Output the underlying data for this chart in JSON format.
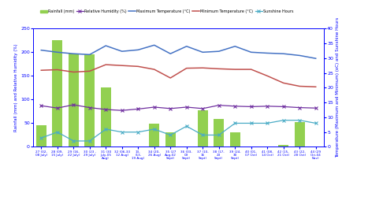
{
  "x_labels": [
    "27 (02-\n08 July)",
    "28 (09-\n15 July)",
    "29 (16-\n22 July)",
    "30 (23 -\n29 July)",
    "31 (30\nJuly-05\nAug)",
    "32 (06-33\n12 Aug)",
    "13-\n(13-\n19 Aug)",
    "34 (20-\n26 Aug)",
    "35 (27\nAug-02\nSept)",
    "36 (03-\n09\nSept)",
    "37 (10-\n16\nSept)",
    "38 (17-\n23\nSept)",
    "39 (24-\n30\nSept)",
    "40 (01-\n07 Oct)",
    "41 (08-\n14 Oct)",
    "42 (15-\n21 Oct)",
    "43 (22-\n28 Oct)",
    "44 (29\nOct-04\nNov)"
  ],
  "rainfall": [
    45,
    225,
    197,
    195,
    126,
    1,
    0,
    49,
    30,
    0,
    78,
    59,
    30,
    1,
    0,
    4,
    52,
    0
  ],
  "rel_humidity": [
    87,
    82,
    89,
    83,
    79,
    77,
    80,
    84,
    81,
    84,
    81,
    88,
    86,
    85,
    86,
    85,
    83,
    82
  ],
  "max_temp": [
    32.7,
    32.0,
    31.5,
    31.2,
    34.2,
    32.3,
    32.8,
    34.4,
    31.5,
    34.0,
    32.0,
    32.3,
    34.0,
    32.0,
    31.7,
    31.5,
    30.9,
    29.9
  ],
  "min_temp": [
    25.9,
    26.1,
    25.3,
    25.6,
    27.8,
    27.5,
    27.2,
    26.2,
    23.3,
    26.6,
    26.7,
    26.4,
    26.2,
    26.2,
    24.0,
    21.6,
    20.5,
    20.3
  ],
  "sunshine": [
    3,
    5,
    2,
    2,
    6,
    5,
    5,
    6,
    4,
    7,
    4,
    4,
    8,
    8,
    8,
    9,
    9,
    8
  ],
  "bar_color": "#92d050",
  "rel_hum_color": "#7030a0",
  "max_temp_color": "#4472c4",
  "min_temp_color": "#c0504d",
  "sunshine_color": "#4bacc6",
  "ylim_left": [
    0,
    250
  ],
  "ylim_right": [
    0,
    40
  ],
  "ylabel_left": "Rainfall (mm) and Relative Humidity (%)",
  "ylabel_right": "Temperature (Maximum and Minimum) (oC) and Sunshine Hours",
  "bg_color": "#ffffff"
}
